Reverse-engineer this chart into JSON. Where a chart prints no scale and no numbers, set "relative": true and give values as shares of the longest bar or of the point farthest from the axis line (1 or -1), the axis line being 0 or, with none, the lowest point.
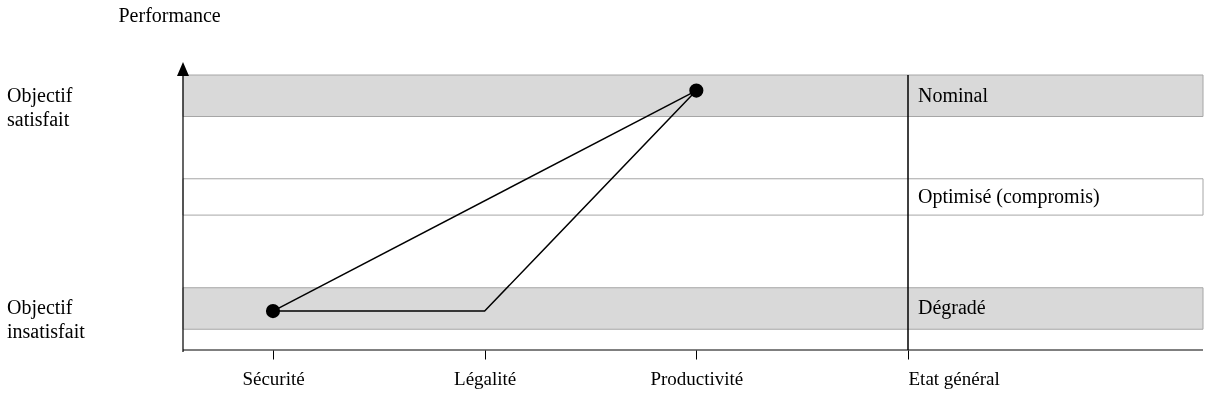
{
  "chart_data": {
    "type": "line",
    "ylabel": "Performance",
    "relative": true,
    "categories": [
      "Sécurité",
      "Légalité",
      "Productivité",
      "Etat général"
    ],
    "series": [
      {
        "color": "#000000",
        "x": [
          "Sécurité",
          "Productivité"
        ],
        "values": [
          0.15,
          1
        ],
        "marker": "circle"
      },
      {
        "color": "#000000",
        "x": [
          "Sécurité",
          "Légalité",
          "Productivité"
        ],
        "values": [
          0.15,
          0.15,
          1
        ],
        "marker": "none"
      }
    ],
    "bands": [
      {
        "axis": "y",
        "from": 0.9,
        "to": 1.06,
        "label": "Nominal",
        "color": "#d9d9d9"
      },
      {
        "axis": "y",
        "from": 0.52,
        "to": 0.66,
        "label": "Optimisé (compromis)",
        "color": "#ffffff"
      },
      {
        "axis": "y",
        "from": 0.08,
        "to": 0.24,
        "label": "Dégradé",
        "color": "#d9d9d9"
      }
    ],
    "ref_lines": [
      {
        "axis": "x",
        "value": "Etat général"
      }
    ],
    "annotations": [
      "Objectif satisfait",
      "Objectif insatisfait"
    ]
  }
}
